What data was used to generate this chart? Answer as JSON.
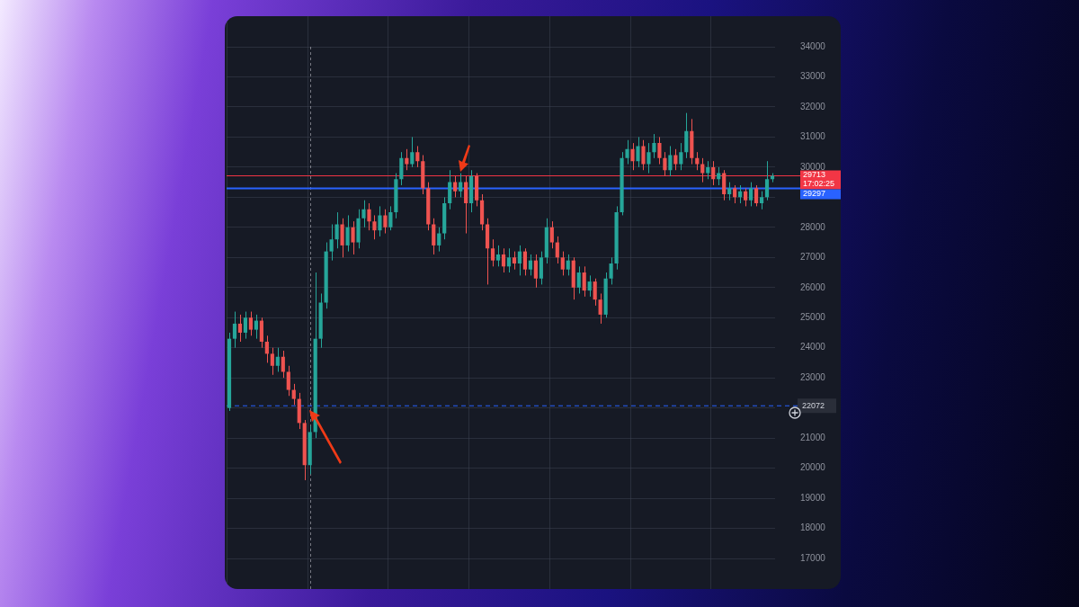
{
  "chart_data": {
    "type": "candlestick",
    "categories": [
      null,
      null,
      null,
      null,
      null,
      null,
      null,
      null,
      null,
      null,
      null,
      null,
      null,
      null,
      null,
      null,
      null,
      null,
      null,
      null,
      null,
      null,
      null,
      null,
      null,
      null,
      null,
      null,
      null,
      null,
      null,
      null,
      null,
      null,
      null,
      null,
      null,
      null,
      null,
      null,
      null,
      null,
      null,
      null,
      null,
      null,
      null,
      null,
      null,
      null,
      null,
      null,
      null,
      null,
      null,
      null,
      null,
      null,
      null,
      null,
      null,
      null,
      null,
      null,
      null,
      null,
      null,
      null,
      null,
      null,
      null,
      null,
      null,
      null,
      null,
      null,
      null,
      null,
      null,
      null,
      null,
      null,
      null,
      null,
      null,
      null,
      null,
      null,
      null,
      null,
      null,
      null,
      null,
      null,
      null,
      null,
      null,
      null,
      null,
      null,
      null,
      null
    ],
    "ohlc": [
      [
        22000,
        24500,
        21900,
        24300
      ],
      [
        24300,
        25200,
        24000,
        24800
      ],
      [
        24800,
        25100,
        24200,
        24500
      ],
      [
        24500,
        25200,
        24300,
        25000
      ],
      [
        25000,
        25200,
        24400,
        24600
      ],
      [
        24600,
        25100,
        24300,
        24900
      ],
      [
        24900,
        25000,
        24000,
        24200
      ],
      [
        24200,
        24400,
        23500,
        23800
      ],
      [
        23800,
        24000,
        23100,
        23400
      ],
      [
        23400,
        24000,
        23200,
        23700
      ],
      [
        23700,
        23900,
        23000,
        23200
      ],
      [
        23200,
        23400,
        22400,
        22600
      ],
      [
        22600,
        22800,
        22100,
        22300
      ],
      [
        22300,
        22500,
        21300,
        21500
      ],
      [
        21500,
        21600,
        19600,
        20100
      ],
      [
        20100,
        21400,
        19800,
        21200
      ],
      [
        21200,
        26500,
        21000,
        24300
      ],
      [
        24300,
        25800,
        24000,
        25500
      ],
      [
        25500,
        27500,
        25300,
        27200
      ],
      [
        27200,
        28100,
        26900,
        27600
      ],
      [
        27600,
        28500,
        27300,
        28100
      ],
      [
        28100,
        28300,
        27000,
        27400
      ],
      [
        27400,
        28400,
        27200,
        28000
      ],
      [
        28000,
        28200,
        27100,
        27500
      ],
      [
        27500,
        28600,
        27300,
        28300
      ],
      [
        28300,
        28900,
        28000,
        28600
      ],
      [
        28600,
        28800,
        27900,
        28200
      ],
      [
        28200,
        28400,
        27600,
        27900
      ],
      [
        27900,
        28700,
        27700,
        28400
      ],
      [
        28400,
        28600,
        27800,
        28000
      ],
      [
        28000,
        28700,
        27900,
        28500
      ],
      [
        28500,
        29800,
        28300,
        29600
      ],
      [
        29600,
        30500,
        29400,
        30300
      ],
      [
        30300,
        30600,
        29900,
        30100
      ],
      [
        30100,
        31000,
        30000,
        30500
      ],
      [
        30500,
        30700,
        30000,
        30200
      ],
      [
        30200,
        30400,
        29100,
        29300
      ],
      [
        29300,
        29500,
        27900,
        28100
      ],
      [
        28100,
        28300,
        27100,
        27400
      ],
      [
        27400,
        28000,
        27200,
        27800
      ],
      [
        27800,
        29000,
        27600,
        28800
      ],
      [
        28800,
        29900,
        28600,
        29500
      ],
      [
        29500,
        29700,
        29000,
        29200
      ],
      [
        29200,
        29800,
        29000,
        29500
      ],
      [
        29500,
        29700,
        27800,
        28800
      ],
      [
        28800,
        29900,
        28500,
        29700
      ],
      [
        29700,
        29800,
        28700,
        28900
      ],
      [
        28900,
        29100,
        27900,
        28100
      ],
      [
        28100,
        28300,
        26100,
        27300
      ],
      [
        27300,
        27600,
        26700,
        26900
      ],
      [
        26900,
        27400,
        26700,
        27100
      ],
      [
        27100,
        27300,
        26500,
        26700
      ],
      [
        26700,
        27300,
        26500,
        27000
      ],
      [
        27000,
        27200,
        26600,
        26800
      ],
      [
        26800,
        27400,
        26400,
        27200
      ],
      [
        27200,
        27300,
        26400,
        26600
      ],
      [
        26600,
        27100,
        26400,
        26900
      ],
      [
        26900,
        27100,
        26000,
        26300
      ],
      [
        26300,
        27200,
        26100,
        27000
      ],
      [
        27000,
        28300,
        26800,
        28000
      ],
      [
        28000,
        28200,
        27300,
        27500
      ],
      [
        27500,
        27700,
        26800,
        27000
      ],
      [
        27000,
        27200,
        26400,
        26600
      ],
      [
        26600,
        27100,
        26400,
        26900
      ],
      [
        26900,
        27000,
        25600,
        26000
      ],
      [
        26000,
        26700,
        25800,
        26500
      ],
      [
        26500,
        26700,
        25700,
        25900
      ],
      [
        25900,
        26400,
        25700,
        26200
      ],
      [
        26200,
        26300,
        25400,
        25600
      ],
      [
        25600,
        25800,
        24800,
        25100
      ],
      [
        25100,
        26500,
        25000,
        26300
      ],
      [
        26300,
        27000,
        26100,
        26800
      ],
      [
        26800,
        28700,
        26600,
        28500
      ],
      [
        28500,
        30500,
        28400,
        30300
      ],
      [
        30300,
        30900,
        30100,
        30600
      ],
      [
        30600,
        30800,
        29900,
        30200
      ],
      [
        30200,
        31000,
        30000,
        30700
      ],
      [
        30700,
        30900,
        29900,
        30100
      ],
      [
        30100,
        30800,
        29800,
        30500
      ],
      [
        30500,
        31100,
        30300,
        30800
      ],
      [
        30800,
        31000,
        30100,
        30300
      ],
      [
        30300,
        30500,
        29700,
        29900
      ],
      [
        29900,
        30700,
        29700,
        30400
      ],
      [
        30400,
        30600,
        29900,
        30100
      ],
      [
        30100,
        30800,
        29900,
        30500
      ],
      [
        30500,
        31800,
        30300,
        31200
      ],
      [
        31200,
        31600,
        30100,
        30300
      ],
      [
        30300,
        30500,
        29900,
        30100
      ],
      [
        30100,
        30300,
        29500,
        29800
      ],
      [
        29800,
        30200,
        29600,
        30000
      ],
      [
        30000,
        30200,
        29400,
        29600
      ],
      [
        29600,
        30000,
        29400,
        29800
      ],
      [
        29800,
        29900,
        28900,
        29100
      ],
      [
        29100,
        29500,
        28900,
        29300
      ],
      [
        29300,
        29400,
        28800,
        29000
      ],
      [
        29000,
        29400,
        28800,
        29200
      ],
      [
        29200,
        29300,
        28700,
        28900
      ],
      [
        28900,
        29500,
        28700,
        29300
      ],
      [
        29300,
        29400,
        28700,
        28800
      ],
      [
        28800,
        29200,
        28600,
        29000
      ],
      [
        29000,
        30200,
        28900,
        29600
      ],
      [
        29600,
        29800,
        29500,
        29713
      ]
    ],
    "colors": [
      "#26a69a",
      "#26a69a",
      "#ef5350",
      "#26a69a",
      "#ef5350",
      "#26a69a",
      "#ef5350",
      "#ef5350",
      "#ef5350",
      "#26a69a",
      "#ef5350",
      "#ef5350",
      "#ef5350",
      "#ef5350",
      "#ef5350",
      "#26a69a",
      "#26a69a",
      "#26a69a",
      "#26a69a",
      "#26a69a",
      "#26a69a",
      "#ef5350",
      "#26a69a",
      "#ef5350",
      "#26a69a",
      "#26a69a",
      "#ef5350",
      "#ef5350",
      "#26a69a",
      "#ef5350",
      "#26a69a",
      "#26a69a",
      "#26a69a",
      "#ef5350",
      "#26a69a",
      "#ef5350",
      "#ef5350",
      "#ef5350",
      "#ef5350",
      "#26a69a",
      "#26a69a",
      "#26a69a",
      "#ef5350",
      "#26a69a",
      "#ef5350",
      "#26a69a",
      "#ef5350",
      "#ef5350",
      "#ef5350",
      "#ef5350",
      "#26a69a",
      "#ef5350",
      "#26a69a",
      "#ef5350",
      "#26a69a",
      "#ef5350",
      "#26a69a",
      "#ef5350",
      "#26a69a",
      "#26a69a",
      "#ef5350",
      "#ef5350",
      "#ef5350",
      "#26a69a",
      "#ef5350",
      "#26a69a",
      "#ef5350",
      "#26a69a",
      "#ef5350",
      "#ef5350",
      "#26a69a",
      "#26a69a",
      "#26a69a",
      "#26a69a",
      "#26a69a",
      "#ef5350",
      "#26a69a",
      "#ef5350",
      "#26a69a",
      "#26a69a",
      "#ef5350",
      "#ef5350",
      "#26a69a",
      "#ef5350",
      "#26a69a",
      "#26a69a",
      "#ef5350",
      "#ef5350",
      "#ef5350",
      "#26a69a",
      "#ef5350",
      "#26a69a",
      "#ef5350",
      "#26a69a",
      "#ef5350",
      "#26a69a",
      "#ef5350",
      "#26a69a",
      "#ef5350",
      "#26a69a",
      "#26a69a",
      "#26a69a"
    ],
    "ylim": [
      17000,
      34000
    ],
    "yticks": [
      17000,
      18000,
      19000,
      20000,
      21000,
      {
        "value": 22000,
        "label": null
      },
      23000,
      24000,
      25000,
      26000,
      27000,
      28000,
      {
        "value": 29000,
        "label": null
      },
      30000,
      31000,
      32000,
      33000,
      34000
    ],
    "tick_labels": "y",
    "grid": true,
    "ref_lines": [
      {
        "axis": "y",
        "value": 29713,
        "label": "29713",
        "color": "#f23645",
        "line_style": "solid"
      },
      {
        "axis": "y",
        "value": 29297,
        "label": "29297",
        "color": "#2962ff",
        "line_style": "solid"
      },
      {
        "axis": "y",
        "value": 22072,
        "label": "22072",
        "color": "#2962ff",
        "line_style": "dashed"
      }
    ],
    "annotations": [
      "17:02:25"
    ]
  }
}
